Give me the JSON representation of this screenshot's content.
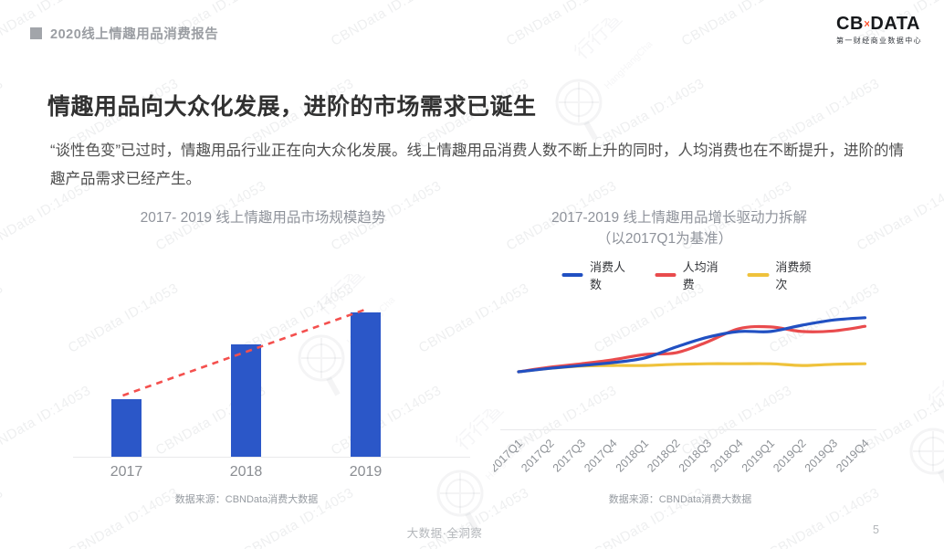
{
  "page": {
    "header": {
      "label": "2020线上情趣用品消费报告"
    },
    "logo": {
      "cb": "CB",
      "data": "DATA",
      "subtitle": "第一财经商业数据中心",
      "accent_color": "#FF4E28"
    },
    "title": "情趣用品向大众化发展，进阶的市场需求已诞生",
    "paragraph": "“谈性色变”已过时，情趣用品行业正在向大众化发展。线上情趣用品消费人数不断上升的同时，人均消费也在不断提升，进阶的情趣产品需求已经产生。",
    "footer": {
      "center": "大数据·全洞察",
      "page_number": "5"
    }
  },
  "watermark": {
    "text": "CBNData ID:14053",
    "stamp_cn": "行行查",
    "stamp_en": "HangHangCha"
  },
  "chart_data": [
    {
      "type": "bar",
      "title": "2017- 2019 线上情趣用品市场规模趋势",
      "categories": [
        "2017",
        "2018",
        "2019"
      ],
      "values": [
        1.0,
        1.97,
        2.53
      ],
      "value_note": "y轴未标注，数值为相对2017年市场规模的估算倍数",
      "bar_color": "#2B57C8",
      "trendline": {
        "style": "dashed",
        "color": "#F4504E"
      },
      "axis_color": "#E9E9EB",
      "source": "数据来源：CBNData消费大数据",
      "grid": false
    },
    {
      "type": "line",
      "title": "2017-2019 线上情趣用品增长驱动力拆解",
      "subtitle": "（以2017Q1为基准）",
      "x": [
        "2017Q1",
        "2017Q2",
        "2017Q3",
        "2017Q4",
        "2018Q1",
        "2018Q2",
        "2018Q3",
        "2018Q4",
        "2019Q1",
        "2019Q2",
        "2019Q3",
        "2019Q4"
      ],
      "series": [
        {
          "name": "消费人数",
          "color": "#2150C2",
          "values": [
            1.0,
            1.06,
            1.11,
            1.16,
            1.24,
            1.43,
            1.6,
            1.7,
            1.7,
            1.81,
            1.9,
            1.94
          ]
        },
        {
          "name": "人均消费",
          "color": "#E94B4D",
          "values": [
            1.0,
            1.08,
            1.14,
            1.21,
            1.3,
            1.33,
            1.52,
            1.75,
            1.78,
            1.7,
            1.71,
            1.79
          ]
        },
        {
          "name": "消费频次",
          "color": "#EFC23B",
          "values": [
            1.0,
            1.06,
            1.1,
            1.11,
            1.11,
            1.13,
            1.14,
            1.14,
            1.14,
            1.11,
            1.13,
            1.14
          ]
        }
      ],
      "baseline": 1.0,
      "value_note": "y轴未标注，数值为以2017Q1=1为基准的估算指数",
      "legend_position": "top",
      "axis_color": "#E9E9EB",
      "source": "数据来源：CBNData消费大数据",
      "grid": false
    }
  ]
}
